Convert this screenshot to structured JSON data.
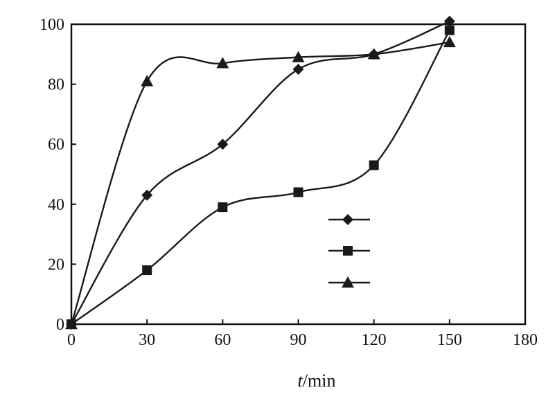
{
  "chart_data": {
    "type": "line",
    "title": "",
    "xlabel_italic": "t",
    "xlabel_rest": "/min",
    "ylabel": "",
    "xlim": [
      0,
      180
    ],
    "ylim": [
      0,
      100
    ],
    "x_ticks": [
      "0",
      "30",
      "60",
      "90",
      "120",
      "150",
      "180"
    ],
    "y_ticks": [
      "0",
      "20",
      "40",
      "60",
      "80",
      "100"
    ],
    "grid": false,
    "legend_position": "lower-right",
    "x": [
      0,
      30,
      60,
      90,
      120,
      150
    ],
    "series": [
      {
        "marker": "diamond",
        "values": [
          0,
          43,
          60,
          85,
          90,
          101
        ]
      },
      {
        "marker": "square",
        "values": [
          0,
          18,
          39,
          44,
          53,
          98
        ]
      },
      {
        "marker": "triangle",
        "values": [
          0,
          81,
          87,
          89,
          90,
          94
        ]
      }
    ]
  }
}
